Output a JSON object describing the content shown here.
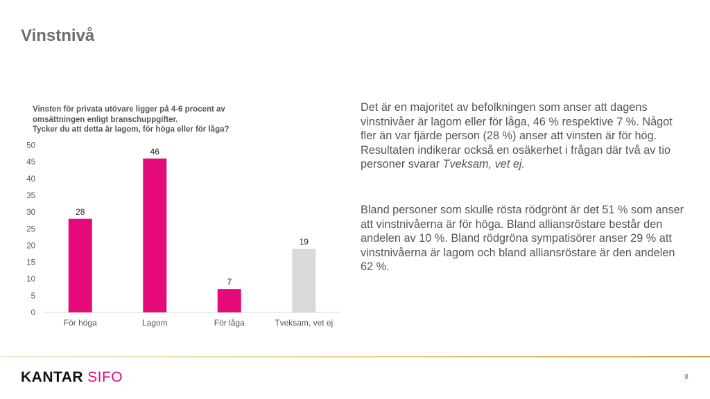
{
  "slide": {
    "title": "Vinstnivå",
    "page_number": "8"
  },
  "chart_question": {
    "line1": "Vinsten för privata utövare ligger på 4-6 procent av",
    "line2": "omsättningen enligt branschuppgifter.",
    "line3": "Tycker du att detta är lagom, för höga eller för låga?"
  },
  "chart_data": {
    "type": "bar",
    "title": "Vinsten för privata utövare ligger på 4-6 procent av omsättningen enligt branschuppgifter. Tycker du att detta är lagom, för höga eller för låga?",
    "categories": [
      "För höga",
      "Lagom",
      "För låga",
      "Tveksam, vet ej"
    ],
    "values": [
      28,
      46,
      7,
      19
    ],
    "bar_colors": [
      "#e40a7a",
      "#e40a7a",
      "#e40a7a",
      "#d9d9d9"
    ],
    "ylim": [
      0,
      50
    ],
    "yticks": [
      0,
      5,
      10,
      15,
      20,
      25,
      30,
      35,
      40,
      45,
      50
    ],
    "data_labels": true,
    "grid": false,
    "legend": "none",
    "xlabel": "",
    "ylabel": ""
  },
  "body": {
    "paragraph1_pre": "Det är en majoritet av befolkningen som anser att dagens vinstnivåer är lagom eller för låga, 46 % respektive 7 %. Något fler än var fjärde person (28 %) anser att vinsten är för hög. Resultaten indikerar också en osäkerhet i frågan där två av tio personer svarar ",
    "paragraph1_em": "Tveksam, vet ej.",
    "paragraph2": "Bland personer som skulle rösta rödgrönt är det 51 % som anser att vinstnivåerna är för höga. Bland alliansröstare består den andelen av 10 %. Bland rödgröna sympatisörer anser 29 % att vinstnivåerna är lagom och bland alliansröstare är den andelen 62 %."
  },
  "footer": {
    "logo_part1": "KANTAR",
    "logo_part2": "SIFO"
  },
  "colors": {
    "accent": "#e40a7a",
    "neutral_bar": "#d9d9d9",
    "footer_gold": "#c9a640"
  }
}
